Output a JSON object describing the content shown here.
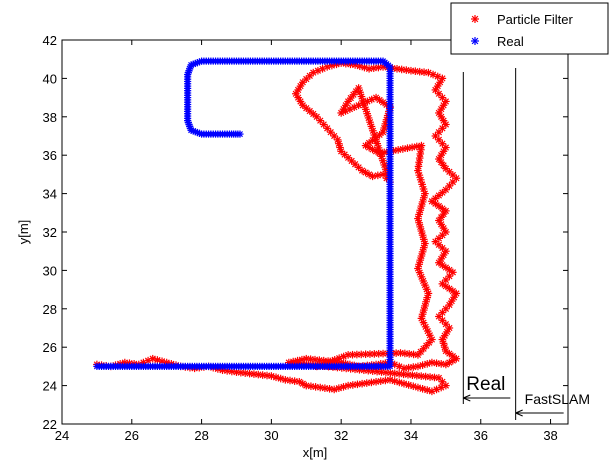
{
  "chart_data": {
    "type": "scatter",
    "title": "",
    "xlabel": "x[m]",
    "ylabel": "y[m]",
    "xlim": [
      24,
      38.5
    ],
    "ylim": [
      22,
      42
    ],
    "xticks": [
      24,
      26,
      28,
      30,
      32,
      34,
      36,
      38
    ],
    "yticks": [
      22,
      24,
      26,
      28,
      30,
      32,
      34,
      36,
      38,
      40,
      42
    ],
    "grid": false,
    "legend_position": "top-right",
    "series": [
      {
        "name": "Particle Filter",
        "color": "#ff0000",
        "marker": "asterisk",
        "points": [
          [
            25.0,
            25.1
          ],
          [
            25.4,
            25.0
          ],
          [
            25.8,
            25.2
          ],
          [
            26.2,
            25.1
          ],
          [
            26.6,
            25.4
          ],
          [
            27.0,
            25.2
          ],
          [
            27.4,
            25.0
          ],
          [
            27.8,
            24.9
          ],
          [
            28.2,
            25.0
          ],
          [
            28.6,
            24.8
          ],
          [
            29.0,
            24.7
          ],
          [
            29.5,
            24.6
          ],
          [
            30.0,
            24.5
          ],
          [
            30.4,
            24.3
          ],
          [
            30.8,
            24.2
          ],
          [
            31.0,
            24.0
          ],
          [
            31.4,
            23.9
          ],
          [
            31.8,
            23.8
          ],
          [
            32.2,
            24.0
          ],
          [
            32.6,
            24.1
          ],
          [
            33.0,
            24.2
          ],
          [
            33.4,
            24.3
          ],
          [
            33.8,
            24.1
          ],
          [
            34.2,
            23.9
          ],
          [
            34.6,
            23.7
          ],
          [
            35.0,
            24.0
          ],
          [
            34.8,
            24.4
          ],
          [
            30.5,
            25.2
          ],
          [
            31.0,
            25.4
          ],
          [
            31.5,
            25.3
          ],
          [
            32.0,
            25.2
          ],
          [
            32.5,
            25.0
          ],
          [
            33.0,
            25.1
          ],
          [
            33.4,
            25.2
          ],
          [
            33.8,
            24.9
          ],
          [
            34.2,
            25.0
          ],
          [
            34.6,
            25.2
          ],
          [
            35.0,
            25.1
          ],
          [
            35.3,
            25.4
          ],
          [
            35.0,
            25.8
          ],
          [
            34.9,
            26.4
          ],
          [
            35.1,
            27.0
          ],
          [
            34.8,
            27.6
          ],
          [
            35.1,
            28.2
          ],
          [
            35.3,
            28.8
          ],
          [
            34.9,
            29.3
          ],
          [
            35.2,
            29.9
          ],
          [
            34.8,
            30.4
          ],
          [
            35.0,
            31.0
          ],
          [
            34.7,
            31.5
          ],
          [
            35.0,
            32.0
          ],
          [
            34.8,
            32.6
          ],
          [
            35.0,
            33.1
          ],
          [
            34.6,
            33.6
          ],
          [
            35.0,
            34.2
          ],
          [
            35.3,
            34.8
          ],
          [
            35.0,
            35.3
          ],
          [
            34.8,
            35.8
          ],
          [
            35.0,
            36.4
          ],
          [
            34.7,
            37.0
          ],
          [
            35.0,
            37.6
          ],
          [
            34.8,
            38.2
          ],
          [
            35.0,
            38.8
          ],
          [
            34.7,
            39.4
          ],
          [
            34.9,
            40.0
          ],
          [
            34.5,
            40.3
          ],
          [
            34.0,
            40.4
          ],
          [
            33.6,
            40.5
          ],
          [
            33.2,
            40.6
          ],
          [
            32.8,
            40.5
          ],
          [
            32.4,
            40.7
          ],
          [
            32.0,
            40.8
          ],
          [
            31.6,
            40.6
          ],
          [
            31.2,
            40.3
          ],
          [
            30.9,
            39.8
          ],
          [
            30.7,
            39.2
          ],
          [
            30.9,
            38.6
          ],
          [
            31.3,
            38.0
          ],
          [
            31.6,
            37.4
          ],
          [
            31.9,
            36.8
          ],
          [
            32.0,
            36.2
          ],
          [
            32.3,
            35.7
          ],
          [
            32.6,
            35.2
          ],
          [
            32.9,
            34.9
          ],
          [
            33.2,
            35.0
          ],
          [
            33.4,
            34.6
          ],
          [
            32.5,
            39.5
          ],
          [
            32.2,
            38.8
          ],
          [
            32.0,
            38.2
          ],
          [
            33.0,
            39.0
          ],
          [
            33.4,
            38.5
          ],
          [
            33.2,
            37.2
          ],
          [
            32.7,
            36.5
          ],
          [
            33.1,
            36.1
          ],
          [
            34.3,
            36.5
          ],
          [
            34.2,
            35.2
          ],
          [
            34.4,
            34.0
          ],
          [
            34.2,
            32.7
          ],
          [
            34.4,
            31.4
          ],
          [
            34.2,
            30.1
          ],
          [
            34.5,
            28.8
          ],
          [
            34.3,
            27.5
          ],
          [
            34.6,
            26.4
          ],
          [
            34.2,
            25.6
          ],
          [
            33.7,
            25.7
          ],
          [
            32.2,
            25.6
          ],
          [
            31.3,
            25.0
          ]
        ]
      },
      {
        "name": "Real",
        "color": "#0000ff",
        "marker": "asterisk",
        "points": [
          [
            25.0,
            25.0
          ],
          [
            25.4,
            25.0
          ],
          [
            25.8,
            25.0
          ],
          [
            26.2,
            25.0
          ],
          [
            26.6,
            25.0
          ],
          [
            27.0,
            25.0
          ],
          [
            27.4,
            25.0
          ],
          [
            27.8,
            25.0
          ],
          [
            28.2,
            25.0
          ],
          [
            28.6,
            25.0
          ],
          [
            29.0,
            25.0
          ],
          [
            29.4,
            25.0
          ],
          [
            29.8,
            25.0
          ],
          [
            30.2,
            25.0
          ],
          [
            30.6,
            25.0
          ],
          [
            31.0,
            25.0
          ],
          [
            31.4,
            25.0
          ],
          [
            31.8,
            25.0
          ],
          [
            32.2,
            25.0
          ],
          [
            32.6,
            25.0
          ],
          [
            33.0,
            25.0
          ],
          [
            33.4,
            25.0
          ],
          [
            33.4,
            25.6
          ],
          [
            33.4,
            26.2
          ],
          [
            33.4,
            26.8
          ],
          [
            33.4,
            27.4
          ],
          [
            33.4,
            28.0
          ],
          [
            33.4,
            28.6
          ],
          [
            33.4,
            29.2
          ],
          [
            33.4,
            29.8
          ],
          [
            33.4,
            30.4
          ],
          [
            33.4,
            31.0
          ],
          [
            33.4,
            31.6
          ],
          [
            33.4,
            32.2
          ],
          [
            33.4,
            32.8
          ],
          [
            33.4,
            33.4
          ],
          [
            33.4,
            34.0
          ],
          [
            33.4,
            34.6
          ],
          [
            33.4,
            35.2
          ],
          [
            33.4,
            35.8
          ],
          [
            33.4,
            36.4
          ],
          [
            33.4,
            37.0
          ],
          [
            33.4,
            37.6
          ],
          [
            33.4,
            38.2
          ],
          [
            33.4,
            38.8
          ],
          [
            33.4,
            39.4
          ],
          [
            33.4,
            40.0
          ],
          [
            33.4,
            40.6
          ],
          [
            33.2,
            40.9
          ],
          [
            32.8,
            40.9
          ],
          [
            32.4,
            40.9
          ],
          [
            32.0,
            40.9
          ],
          [
            31.6,
            40.9
          ],
          [
            31.2,
            40.9
          ],
          [
            30.8,
            40.9
          ],
          [
            30.4,
            40.9
          ],
          [
            30.0,
            40.9
          ],
          [
            29.6,
            40.9
          ],
          [
            29.2,
            40.9
          ],
          [
            28.8,
            40.9
          ],
          [
            28.4,
            40.9
          ],
          [
            28.0,
            40.9
          ],
          [
            27.7,
            40.7
          ],
          [
            27.6,
            40.2
          ],
          [
            27.6,
            39.6
          ],
          [
            27.6,
            39.0
          ],
          [
            27.6,
            38.4
          ],
          [
            27.6,
            37.8
          ],
          [
            27.7,
            37.3
          ],
          [
            28.0,
            37.1
          ],
          [
            28.4,
            37.1
          ],
          [
            28.8,
            37.1
          ],
          [
            29.1,
            37.1
          ]
        ]
      }
    ],
    "annotations": [
      {
        "label": "Real",
        "x": 35.5
      },
      {
        "label": "FastSLAM",
        "x": 37.0
      }
    ]
  }
}
